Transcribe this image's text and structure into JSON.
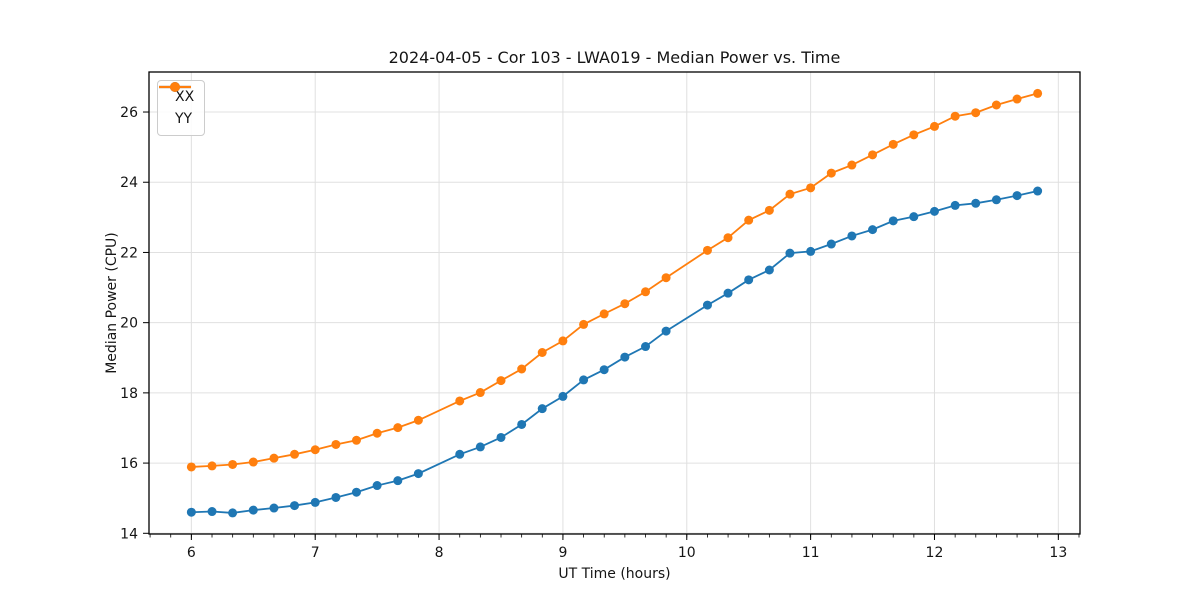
{
  "chart_data": {
    "type": "line",
    "title": "2024-04-05 - Cor 103 - LWA019 - Median Power vs. Time",
    "xlabel": "UT Time (hours)",
    "ylabel": "Median Power (CPU)",
    "xlim": [
      5.658,
      13.175
    ],
    "ylim": [
      13.98,
      27.14
    ],
    "x_ticks": [
      6,
      7,
      8,
      9,
      10,
      11,
      12,
      13
    ],
    "y_ticks": [
      14,
      16,
      18,
      20,
      22,
      24,
      26
    ],
    "x_minor_step": 0.16667,
    "grid": true,
    "grid_color": "#e0e0e0",
    "spine_color": "#000000",
    "legend_position": "upper-left",
    "x": [
      6,
      6.167,
      6.333,
      6.5,
      6.667,
      6.833,
      7,
      7.167,
      7.333,
      7.5,
      7.667,
      7.833,
      8.167,
      8.333,
      8.5,
      8.667,
      8.833,
      9,
      9.167,
      9.333,
      9.5,
      9.667,
      9.833,
      10.167,
      10.333,
      10.5,
      10.667,
      10.833,
      11,
      11.167,
      11.333,
      11.5,
      11.667,
      11.833,
      12,
      12.167,
      12.333,
      12.5,
      12.667,
      12.833
    ],
    "series": [
      {
        "name": "XX",
        "color": "#1f77b4",
        "values": [
          14.6,
          14.62,
          14.58,
          14.66,
          14.72,
          14.79,
          14.88,
          15.02,
          15.17,
          15.36,
          15.5,
          15.7,
          16.25,
          16.46,
          16.73,
          17.1,
          17.55,
          17.9,
          18.37,
          18.66,
          19.02,
          19.32,
          19.76,
          20.5,
          20.84,
          21.22,
          21.5,
          21.98,
          22.03,
          22.24,
          22.47,
          22.65,
          22.9,
          23.02,
          23.17,
          23.34,
          23.4,
          23.5,
          23.62,
          23.75
        ]
      },
      {
        "name": "YY",
        "color": "#ff7f0e",
        "values": [
          15.89,
          15.92,
          15.96,
          16.03,
          16.14,
          16.25,
          16.38,
          16.53,
          16.65,
          16.85,
          17.01,
          17.22,
          17.77,
          18.01,
          18.35,
          18.68,
          19.15,
          19.48,
          19.95,
          20.25,
          20.54,
          20.88,
          21.28,
          22.06,
          22.42,
          22.92,
          23.2,
          23.66,
          23.84,
          24.26,
          24.49,
          24.78,
          25.08,
          25.35,
          25.59,
          25.88,
          25.98,
          26.2,
          26.37,
          26.53
        ]
      }
    ]
  }
}
